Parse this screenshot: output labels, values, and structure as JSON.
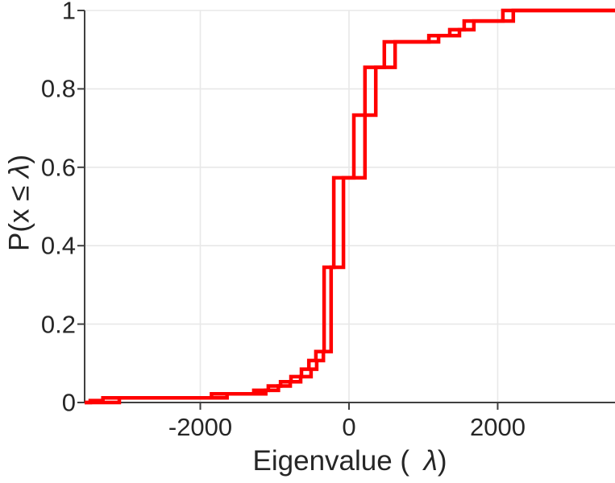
{
  "figure": {
    "xlabel": {
      "prefix": "Eigenvalue ( ",
      "symbol": "λ",
      "suffix": ")"
    },
    "ylabel": {
      "prefix": "P(x ≤ ",
      "symbol": "λ",
      "suffix": ")"
    }
  },
  "chart_data": {
    "type": "line",
    "subtype": "ecdf-stairs",
    "title": "",
    "xlabel": "Eigenvalue ( λ)",
    "ylabel": "P(x ≤ λ)",
    "xlim": [
      -3556,
      3578
    ],
    "ylim": [
      0,
      1
    ],
    "xticks": [
      -2000,
      0,
      2000
    ],
    "xtick_labels": [
      "-2000",
      "0",
      "2000"
    ],
    "yticks": [
      0,
      0.2,
      0.4,
      0.6,
      0.8,
      1
    ],
    "ytick_labels": [
      "0",
      "0.2",
      "0.4",
      "0.6",
      "0.8",
      "1"
    ],
    "grid": true,
    "legend_position": "none",
    "line_color": "#ff0000",
    "axis_color": "#404040",
    "grid_color": "#e8e8e8",
    "tick_label_color": "#262626",
    "series": [
      {
        "name": "ecdf-curve-1",
        "x": [
          -3480,
          -3310,
          -1850,
          -1280,
          -1085,
          -920,
          -780,
          -640,
          -540,
          -445,
          -335,
          -205,
          65,
          215,
          475,
          1075,
          1355,
          1550,
          2070
        ],
        "p": [
          0.005,
          0.012,
          0.022,
          0.031,
          0.042,
          0.053,
          0.066,
          0.085,
          0.107,
          0.13,
          0.345,
          0.573,
          0.733,
          0.855,
          0.92,
          0.936,
          0.951,
          0.973,
          1.0
        ]
      },
      {
        "name": "ecdf-curve-2",
        "x": [
          -3090,
          -1640,
          -1120,
          -950,
          -790,
          -650,
          -510,
          -435,
          -345,
          -240,
          -75,
          215,
          360,
          620,
          1205,
          1485,
          1680,
          2210
        ],
        "p": [
          0.012,
          0.022,
          0.031,
          0.042,
          0.053,
          0.066,
          0.085,
          0.107,
          0.13,
          0.345,
          0.573,
          0.733,
          0.855,
          0.92,
          0.936,
          0.951,
          0.973,
          1.0
        ]
      }
    ]
  }
}
